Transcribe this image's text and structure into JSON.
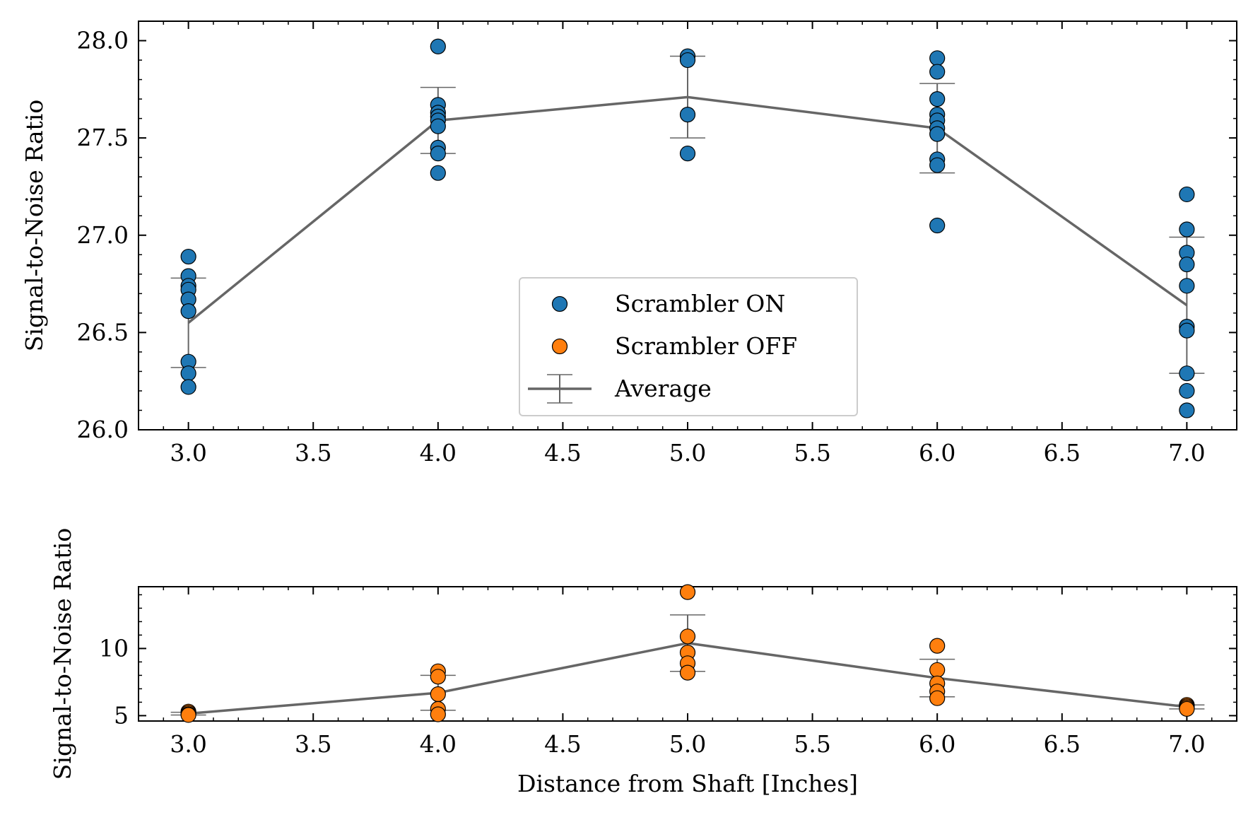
{
  "chart_data": [
    {
      "type": "scatter",
      "panel": "top",
      "xlabel": "",
      "ylabel": "Signal-to-Noise Ratio",
      "xlim": [
        2.8,
        7.2
      ],
      "ylim": [
        26.0,
        28.1
      ],
      "xticks": [
        3.0,
        3.5,
        4.0,
        4.5,
        5.0,
        5.5,
        6.0,
        6.5,
        7.0
      ],
      "xtick_labels": [
        "3.0",
        "3.5",
        "4.0",
        "4.5",
        "5.0",
        "5.5",
        "6.0",
        "6.5",
        "7.0"
      ],
      "yticks": [
        26.0,
        26.5,
        27.0,
        27.5,
        28.0
      ],
      "ytick_labels": [
        "26.0",
        "26.5",
        "27.0",
        "27.5",
        "28.0"
      ],
      "grid": false,
      "legend_position": "bottom-center",
      "series": [
        {
          "name": "Scrambler ON",
          "color": "#1f77b4",
          "points": [
            [
              3.0,
              26.89
            ],
            [
              3.0,
              26.79
            ],
            [
              3.0,
              26.74
            ],
            [
              3.0,
              26.72
            ],
            [
              3.0,
              26.67
            ],
            [
              3.0,
              26.61
            ],
            [
              3.0,
              26.35
            ],
            [
              3.0,
              26.29
            ],
            [
              3.0,
              26.22
            ],
            [
              4.0,
              27.97
            ],
            [
              4.0,
              27.67
            ],
            [
              4.0,
              27.63
            ],
            [
              4.0,
              27.61
            ],
            [
              4.0,
              27.59
            ],
            [
              4.0,
              27.56
            ],
            [
              4.0,
              27.45
            ],
            [
              4.0,
              27.42
            ],
            [
              4.0,
              27.32
            ],
            [
              5.0,
              27.92
            ],
            [
              5.0,
              27.9
            ],
            [
              5.0,
              27.62
            ],
            [
              5.0,
              27.42
            ],
            [
              6.0,
              27.91
            ],
            [
              6.0,
              27.84
            ],
            [
              6.0,
              27.7
            ],
            [
              6.0,
              27.62
            ],
            [
              6.0,
              27.59
            ],
            [
              6.0,
              27.55
            ],
            [
              6.0,
              27.52
            ],
            [
              6.0,
              27.39
            ],
            [
              6.0,
              27.36
            ],
            [
              6.0,
              27.05
            ],
            [
              7.0,
              27.21
            ],
            [
              7.0,
              27.03
            ],
            [
              7.0,
              26.91
            ],
            [
              7.0,
              26.85
            ],
            [
              7.0,
              26.74
            ],
            [
              7.0,
              26.53
            ],
            [
              7.0,
              26.51
            ],
            [
              7.0,
              26.29
            ],
            [
              7.0,
              26.2
            ],
            [
              7.0,
              26.1
            ]
          ]
        },
        {
          "name": "Average",
          "color": "#666666",
          "x": [
            3.0,
            4.0,
            5.0,
            6.0,
            7.0
          ],
          "y": [
            26.55,
            27.59,
            27.71,
            27.55,
            26.64
          ],
          "yerr": [
            0.23,
            0.17,
            0.21,
            0.23,
            0.35
          ]
        }
      ]
    },
    {
      "type": "scatter",
      "panel": "bottom",
      "xlabel": "Distance from Shaft [Inches]",
      "ylabel": "Signal-to-Noise Ratio",
      "xlim": [
        2.8,
        7.2
      ],
      "ylim": [
        4.6,
        14.6
      ],
      "xticks": [
        3.0,
        3.5,
        4.0,
        4.5,
        5.0,
        5.5,
        6.0,
        6.5,
        7.0
      ],
      "xtick_labels": [
        "3.0",
        "3.5",
        "4.0",
        "4.5",
        "5.0",
        "5.5",
        "6.0",
        "6.5",
        "7.0"
      ],
      "yticks": [
        5,
        10
      ],
      "ytick_labels": [
        "5",
        "10"
      ],
      "grid": false,
      "series": [
        {
          "name": "Scrambler OFF",
          "color": "#ff7f0e",
          "points": [
            [
              3.0,
              5.3
            ],
            [
              3.0,
              5.2
            ],
            [
              3.0,
              5.1
            ],
            [
              3.0,
              5.05
            ],
            [
              4.0,
              8.3
            ],
            [
              4.0,
              7.9
            ],
            [
              4.0,
              6.6
            ],
            [
              4.0,
              5.5
            ],
            [
              4.0,
              5.1
            ],
            [
              5.0,
              14.2
            ],
            [
              5.0,
              10.9
            ],
            [
              5.0,
              9.7
            ],
            [
              5.0,
              8.9
            ],
            [
              5.0,
              8.2
            ],
            [
              6.0,
              10.2
            ],
            [
              6.0,
              8.4
            ],
            [
              6.0,
              7.4
            ],
            [
              6.0,
              6.8
            ],
            [
              6.0,
              6.3
            ],
            [
              7.0,
              5.8
            ],
            [
              7.0,
              5.7
            ],
            [
              7.0,
              5.6
            ],
            [
              7.0,
              5.5
            ]
          ]
        },
        {
          "name": "Average",
          "color": "#666666",
          "x": [
            3.0,
            4.0,
            5.0,
            6.0,
            7.0
          ],
          "y": [
            5.15,
            6.7,
            10.4,
            7.8,
            5.65
          ],
          "yerr": [
            0.1,
            1.3,
            2.1,
            1.4,
            0.15
          ]
        }
      ]
    }
  ],
  "legend": {
    "items": [
      {
        "label": "Scrambler ON",
        "kind": "marker",
        "color": "#1f77b4"
      },
      {
        "label": "Scrambler OFF",
        "kind": "marker",
        "color": "#ff7f0e"
      },
      {
        "label": "Average",
        "kind": "errorbar",
        "color": "#666666"
      }
    ]
  }
}
